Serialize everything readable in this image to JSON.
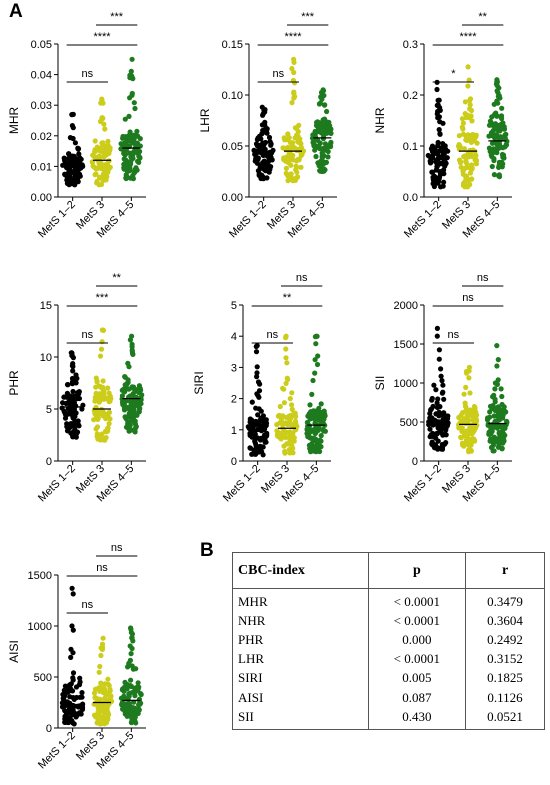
{
  "panel_labels": {
    "a": "A",
    "b": "B"
  },
  "colors": {
    "group1": "#000000",
    "group2": "#cccc1a",
    "group3": "#1e7a1e"
  },
  "chart_data": [
    {
      "type": "scatter",
      "id": "mhr",
      "ylabel": "MHR",
      "categories": [
        "MetS 1–2",
        "MetS 3",
        "MetS 4–5"
      ],
      "ylim": [
        0,
        0.05
      ],
      "yticks": [
        0.0,
        0.01,
        0.02,
        0.03,
        0.04,
        0.05
      ],
      "ytick_labels": [
        "0.00",
        "0.01",
        "0.02",
        "0.03",
        "0.04",
        "0.05"
      ],
      "groups": [
        {
          "name": "MetS 1–2",
          "n": 95,
          "median": 0.01,
          "q1": 0.008,
          "q3": 0.013,
          "min": 0.004,
          "max": 0.027
        },
        {
          "name": "MetS 3",
          "n": 90,
          "median": 0.012,
          "q1": 0.009,
          "q3": 0.016,
          "min": 0.004,
          "max": 0.032
        },
        {
          "name": "MetS 4–5",
          "n": 110,
          "median": 0.016,
          "q1": 0.012,
          "q3": 0.02,
          "min": 0.006,
          "max": 0.045
        }
      ],
      "comparisons": [
        {
          "from": 0,
          "to": 1,
          "label": "ns"
        },
        {
          "from": 0,
          "to": 2,
          "label": "****"
        },
        {
          "from": 1,
          "to": 2,
          "label": "***"
        }
      ]
    },
    {
      "type": "scatter",
      "id": "lhr",
      "ylabel": "LHR",
      "categories": [
        "MetS 1–2",
        "MetS 3",
        "MetS 4–5"
      ],
      "ylim": [
        0,
        0.15
      ],
      "yticks": [
        0,
        0.05,
        0.1,
        0.15
      ],
      "ytick_labels": [
        "0.00",
        "0.05",
        "0.10",
        "0.15"
      ],
      "groups": [
        {
          "name": "MetS 1–2",
          "n": 95,
          "median": 0.042,
          "q1": 0.033,
          "q3": 0.052,
          "min": 0.018,
          "max": 0.088
        },
        {
          "name": "MetS 3",
          "n": 90,
          "median": 0.045,
          "q1": 0.036,
          "q3": 0.058,
          "min": 0.016,
          "max": 0.135
        },
        {
          "name": "MetS 4–5",
          "n": 110,
          "median": 0.058,
          "q1": 0.047,
          "q3": 0.07,
          "min": 0.025,
          "max": 0.105
        }
      ],
      "comparisons": [
        {
          "from": 0,
          "to": 1,
          "label": "ns"
        },
        {
          "from": 0,
          "to": 2,
          "label": "****"
        },
        {
          "from": 1,
          "to": 2,
          "label": "***"
        }
      ]
    },
    {
      "type": "scatter",
      "id": "nhr",
      "ylabel": "NHR",
      "categories": [
        "MetS 1–2",
        "MetS 3",
        "MetS 4–5"
      ],
      "ylim": [
        0,
        0.3
      ],
      "yticks": [
        0,
        0.1,
        0.2,
        0.3
      ],
      "ytick_labels": [
        "0.0",
        "0.1",
        "0.2",
        "0.3"
      ],
      "groups": [
        {
          "name": "MetS 1–2",
          "n": 95,
          "median": 0.075,
          "q1": 0.055,
          "q3": 0.1,
          "min": 0.02,
          "max": 0.225
        },
        {
          "name": "MetS 3",
          "n": 90,
          "median": 0.09,
          "q1": 0.068,
          "q3": 0.12,
          "min": 0.02,
          "max": 0.255
        },
        {
          "name": "MetS 4–5",
          "n": 110,
          "median": 0.11,
          "q1": 0.09,
          "q3": 0.14,
          "min": 0.04,
          "max": 0.23
        }
      ],
      "comparisons": [
        {
          "from": 0,
          "to": 1,
          "label": "*"
        },
        {
          "from": 0,
          "to": 2,
          "label": "****"
        },
        {
          "from": 1,
          "to": 2,
          "label": "**"
        }
      ]
    },
    {
      "type": "scatter",
      "id": "phr",
      "ylabel": "PHR",
      "categories": [
        "MetS 1–2",
        "MetS 3",
        "MetS 4–5"
      ],
      "ylim": [
        0,
        15
      ],
      "yticks": [
        0,
        5,
        10,
        15
      ],
      "ytick_labels": [
        "0",
        "5",
        "10",
        "15"
      ],
      "groups": [
        {
          "name": "MetS 1–2",
          "n": 95,
          "median": 5.2,
          "q1": 4.2,
          "q3": 6.3,
          "min": 2.3,
          "max": 10.4
        },
        {
          "name": "MetS 3",
          "n": 90,
          "median": 5.0,
          "q1": 4.2,
          "q3": 6.5,
          "min": 2.0,
          "max": 12.6
        },
        {
          "name": "MetS 4–5",
          "n": 110,
          "median": 6.0,
          "q1": 5.0,
          "q3": 7.2,
          "min": 2.8,
          "max": 12.0
        }
      ],
      "comparisons": [
        {
          "from": 0,
          "to": 1,
          "label": "ns"
        },
        {
          "from": 0,
          "to": 2,
          "label": "***"
        },
        {
          "from": 1,
          "to": 2,
          "label": "**"
        }
      ]
    },
    {
      "type": "scatter",
      "id": "siri",
      "ylabel": "SIRI",
      "categories": [
        "MetS 1–2",
        "MetS 3",
        "MetS 4–5"
      ],
      "ylim": [
        0,
        5
      ],
      "yticks": [
        0,
        1,
        2,
        3,
        4,
        5
      ],
      "ytick_labels": [
        "0",
        "1",
        "2",
        "3",
        "4",
        "5"
      ],
      "groups": [
        {
          "name": "MetS 1–2",
          "n": 95,
          "median": 0.95,
          "q1": 0.7,
          "q3": 1.3,
          "min": 0.2,
          "max": 3.7
        },
        {
          "name": "MetS 3",
          "n": 90,
          "median": 1.05,
          "q1": 0.75,
          "q3": 1.45,
          "min": 0.25,
          "max": 4.0
        },
        {
          "name": "MetS 4–5",
          "n": 110,
          "median": 1.15,
          "q1": 0.8,
          "q3": 1.6,
          "min": 0.3,
          "max": 4.0
        }
      ],
      "comparisons": [
        {
          "from": 0,
          "to": 1,
          "label": "ns"
        },
        {
          "from": 0,
          "to": 2,
          "label": "**"
        },
        {
          "from": 1,
          "to": 2,
          "label": "ns"
        }
      ]
    },
    {
      "type": "scatter",
      "id": "sii",
      "ylabel": "SII",
      "categories": [
        "MetS 1–2",
        "MetS 3",
        "MetS 4–5"
      ],
      "ylim": [
        0,
        2000
      ],
      "yticks": [
        0,
        500,
        1000,
        1500,
        2000
      ],
      "ytick_labels": [
        "0",
        "500",
        "1000",
        "1500",
        "2000"
      ],
      "groups": [
        {
          "name": "MetS 1–2",
          "n": 95,
          "median": 480,
          "q1": 360,
          "q3": 620,
          "min": 150,
          "max": 1700
        },
        {
          "name": "MetS 3",
          "n": 90,
          "median": 470,
          "q1": 350,
          "q3": 640,
          "min": 120,
          "max": 1200
        },
        {
          "name": "MetS 4–5",
          "n": 110,
          "median": 480,
          "q1": 350,
          "q3": 650,
          "min": 130,
          "max": 1480
        }
      ],
      "comparisons": [
        {
          "from": 0,
          "to": 1,
          "label": "ns"
        },
        {
          "from": 0,
          "to": 2,
          "label": "ns"
        },
        {
          "from": 1,
          "to": 2,
          "label": "ns"
        }
      ]
    },
    {
      "type": "scatter",
      "id": "aisi",
      "ylabel": "AISI",
      "categories": [
        "MetS 1–2",
        "MetS 3",
        "MetS 4–5"
      ],
      "ylim": [
        0,
        1500
      ],
      "yticks": [
        0,
        500,
        1000,
        1500
      ],
      "ytick_labels": [
        "0",
        "500",
        "1000",
        "1500"
      ],
      "groups": [
        {
          "name": "MetS 1–2",
          "n": 95,
          "median": 230,
          "q1": 150,
          "q3": 360,
          "min": 40,
          "max": 1370
        },
        {
          "name": "MetS 3",
          "n": 90,
          "median": 250,
          "q1": 160,
          "q3": 380,
          "min": 40,
          "max": 880
        },
        {
          "name": "MetS 4–5",
          "n": 110,
          "median": 270,
          "q1": 170,
          "q3": 400,
          "min": 50,
          "max": 980
        }
      ],
      "comparisons": [
        {
          "from": 0,
          "to": 1,
          "label": "ns"
        },
        {
          "from": 0,
          "to": 2,
          "label": "ns"
        },
        {
          "from": 1,
          "to": 2,
          "label": "ns"
        }
      ]
    },
    {
      "type": "table",
      "id": "cbc-table",
      "columns": [
        "CBC-index",
        "p",
        "r"
      ],
      "rows": [
        [
          "MHR",
          "< 0.0001",
          "0.3479"
        ],
        [
          "NHR",
          "< 0.0001",
          "0.3604"
        ],
        [
          "PHR",
          "0.000",
          "0.2492"
        ],
        [
          "LHR",
          "< 0.0001",
          "0.3152"
        ],
        [
          "SIRI",
          "0.005",
          "0.1825"
        ],
        [
          "AISI",
          "0.087",
          "0.1126"
        ],
        [
          "SII",
          "0.430",
          "0.0521"
        ]
      ]
    }
  ]
}
